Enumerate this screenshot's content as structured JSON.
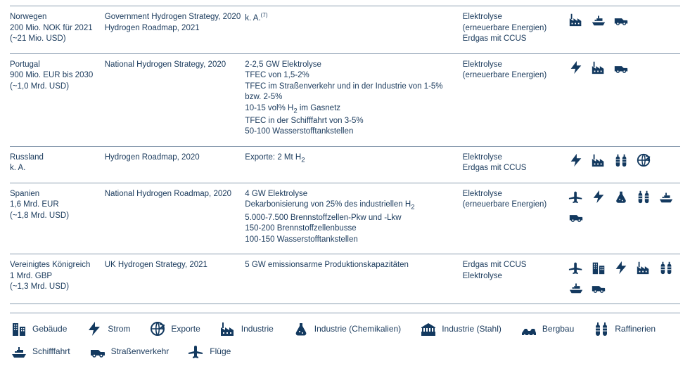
{
  "colors": {
    "text": "#1a3a5c",
    "icon": "#13395f",
    "border": "#8a9db0",
    "background": "#ffffff"
  },
  "font": {
    "family": "Arial",
    "size_pt": 9
  },
  "icons": {
    "buildings": "Gebäude",
    "power": "Strom",
    "exports": "Exporte",
    "industry": "Industrie",
    "chemicals": "Industrie (Chemikalien)",
    "steel": "Industrie (Stahl)",
    "mining": "Bergbau",
    "refineries": "Raffinerien",
    "shipping": "Schifffahrt",
    "road": "Straßenverkehr",
    "flights": "Flüge"
  },
  "rows": [
    {
      "country": "Norwegen",
      "budget_lines": [
        "200 Mio. NOK für 2021",
        "(~21 Mio. USD)"
      ],
      "strategy_lines": [
        "Government Hydrogen Strategy, 2020",
        "Hydrogen Roadmap, 2021"
      ],
      "targets_lines": [
        "k. A.(7)"
      ],
      "tech_lines": [
        "Elektrolyse",
        "(erneuerbare Energien)",
        "Erdgas mit CCUS"
      ],
      "icon_list": [
        "industry",
        "shipping",
        "road"
      ]
    },
    {
      "country": "Portugal",
      "budget_lines": [
        "900 Mio. EUR bis 2030",
        "(~1,0 Mrd. USD)"
      ],
      "strategy_lines": [
        "National Hydrogen Strategy, 2020"
      ],
      "targets_lines": [
        "2-2,5 GW Elektrolyse",
        "TFEC von 1,5-2%",
        "TFEC im Straßenverkehr und in der Industrie von 1-5% bzw. 2-5%",
        "10-15 vol% H₂ im Gasnetz",
        "TFEC in der Schifffahrt von 3-5%",
        "50-100 Wasserstofftankstellen"
      ],
      "tech_lines": [
        "Elektrolyse",
        "(erneuerbare Energien)"
      ],
      "icon_list": [
        "power",
        "industry",
        "road"
      ]
    },
    {
      "country": "Russland",
      "budget_lines": [
        "k. A."
      ],
      "strategy_lines": [
        "Hydrogen Roadmap, 2020"
      ],
      "targets_lines": [
        "Exporte: 2 Mt H₂"
      ],
      "tech_lines": [
        "Elektrolyse",
        "Erdgas mit CCUS"
      ],
      "icon_list": [
        "power",
        "industry",
        "refineries",
        "exports"
      ]
    },
    {
      "country": "Spanien",
      "budget_lines": [
        "1,6 Mrd. EUR",
        "(~1,8 Mrd. USD)"
      ],
      "strategy_lines": [
        "National Hydrogen Roadmap, 2020"
      ],
      "targets_lines": [
        "4 GW Elektrolyse",
        "Dekarbonisierung von 25% des industriellen H₂",
        "5.000-7.500 Brennstoffzellen-Pkw und -Lkw",
        "150-200 Brennstoffzellenbusse",
        "100-150 Wasserstofftankstellen"
      ],
      "tech_lines": [
        "Elektrolyse",
        "(erneuerbare Energien)"
      ],
      "icon_list": [
        "flights",
        "power",
        "chemicals",
        "refineries",
        "shipping",
        "road"
      ]
    },
    {
      "country": "Vereinigtes Königreich",
      "budget_lines": [
        "1 Mrd. GBP",
        "(~1,3 Mrd. USD)"
      ],
      "strategy_lines": [
        "UK Hydrogen Strategy, 2021"
      ],
      "targets_lines": [
        "5 GW emissionsarme Produktionskapazitäten"
      ],
      "tech_lines": [
        "Erdgas mit CCUS",
        "Elektrolyse"
      ],
      "icon_list": [
        "flights",
        "buildings",
        "power",
        "industry",
        "refineries",
        "shipping",
        "road"
      ]
    }
  ],
  "legend_order": [
    "buildings",
    "power",
    "exports",
    "industry",
    "chemicals",
    "steel",
    "mining",
    "refineries",
    "shipping",
    "road",
    "flights"
  ]
}
